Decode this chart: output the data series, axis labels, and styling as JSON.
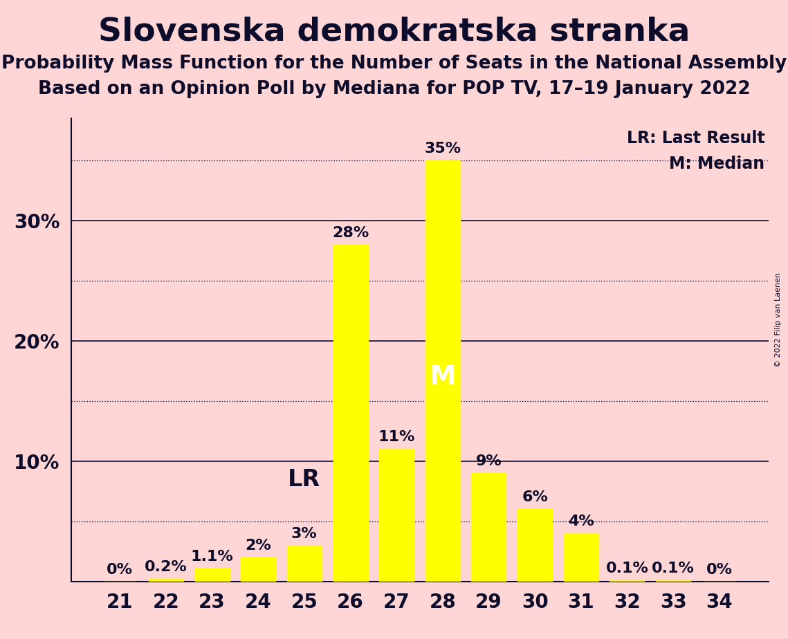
{
  "title": "Slovenska demokratska stranka",
  "subtitle1": "Probability Mass Function for the Number of Seats in the National Assembly",
  "subtitle2": "Based on an Opinion Poll by Mediana for POP TV, 17–19 January 2022",
  "copyright": "© 2022 Filip van Laenen",
  "categories": [
    21,
    22,
    23,
    24,
    25,
    26,
    27,
    28,
    29,
    30,
    31,
    32,
    33,
    34
  ],
  "values": [
    0.0,
    0.2,
    1.1,
    2.0,
    3.0,
    28.0,
    11.0,
    35.0,
    9.0,
    6.0,
    4.0,
    0.1,
    0.1,
    0.0
  ],
  "labels": [
    "0%",
    "0.2%",
    "1.1%",
    "2%",
    "3%",
    "28%",
    "11%",
    "35%",
    "9%",
    "6%",
    "4%",
    "0.1%",
    "0.1%",
    "0%"
  ],
  "bar_color": "#FFFF00",
  "background_color": "#FFD6D6",
  "text_color": "#0d0d2b",
  "lr_seat": 25,
  "median_seat": 28,
  "lr_label": "LR",
  "median_label": "M",
  "legend_lr": "LR: Last Result",
  "legend_m": "M: Median",
  "ylim": [
    0,
    38.5
  ],
  "solid_grid": [
    10,
    20,
    30
  ],
  "dotted_grid": [
    5,
    15,
    25,
    35
  ],
  "ylabel_ticks": [
    10,
    20,
    30
  ],
  "ylabel_tick_labels": [
    "10%",
    "20%",
    "30%"
  ],
  "title_fontsize": 34,
  "subtitle_fontsize": 19,
  "tick_fontsize": 20,
  "bar_label_fontsize": 16,
  "lr_fontsize": 24,
  "m_fontsize": 28,
  "legend_fontsize": 17
}
